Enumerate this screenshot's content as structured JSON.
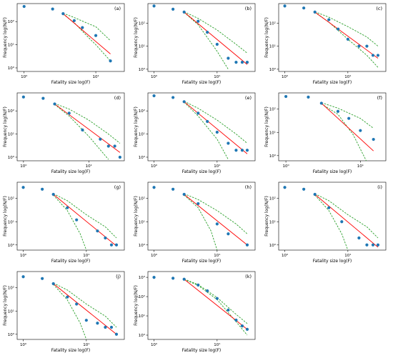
{
  "figure": {
    "colors": {
      "points": "#1f77b4",
      "fit_line": "#ff0000",
      "confidence_band": "#2ca02c",
      "axes": "#000000"
    }
  },
  "chart_data": [
    {
      "type": "scatter",
      "label": "(a)",
      "xlabel": "Fatality size log(F)",
      "ylabel": "Frequency log(N/F)",
      "x_scale": "log",
      "y_scale": "log",
      "xlim": [
        0.8,
        25
      ],
      "ylim": [
        0.7,
        600
      ],
      "x_ticks": [
        1,
        10
      ],
      "x_tick_labels": [
        "10⁰",
        "10¹"
      ],
      "y_ticks": [
        1,
        10,
        100
      ],
      "y_tick_labels": [
        "10⁰",
        "10¹",
        "10²"
      ],
      "points": {
        "x": [
          1,
          2.5,
          3.5,
          5,
          6.5,
          10,
          16
        ],
        "y": [
          450,
          350,
          220,
          110,
          55,
          25,
          2
        ]
      },
      "fit": {
        "x": [
          3.5,
          16
        ],
        "y": [
          220,
          4
        ]
      },
      "band_upper": {
        "x": [
          3.5,
          5,
          7,
          10,
          16
        ],
        "y": [
          230,
          150,
          95,
          60,
          15
        ]
      },
      "band_lower": {
        "x": [
          3.5,
          5,
          7,
          10,
          16
        ],
        "y": [
          210,
          90,
          30,
          10,
          2
        ]
      }
    },
    {
      "type": "scatter",
      "label": "(b)",
      "xlabel": "Fatality size log(F)",
      "ylabel": "Frequency log(N/F)",
      "x_scale": "log",
      "y_scale": "log",
      "xlim": [
        0.8,
        40
      ],
      "ylim": [
        0.8,
        700
      ],
      "x_ticks": [
        1,
        10
      ],
      "x_tick_labels": [
        "10⁰",
        "10¹"
      ],
      "y_ticks": [
        1,
        10,
        100
      ],
      "y_tick_labels": [
        "10⁰",
        "10¹",
        "10²"
      ],
      "points": {
        "x": [
          1,
          2,
          3,
          5,
          7,
          10,
          15,
          20,
          25,
          30
        ],
        "y": [
          550,
          400,
          300,
          120,
          40,
          12,
          3,
          2,
          2,
          2
        ]
      },
      "fit": {
        "x": [
          3,
          30
        ],
        "y": [
          300,
          1.6
        ]
      },
      "band_upper": {
        "x": [
          3,
          5,
          10,
          20,
          30
        ],
        "y": [
          310,
          160,
          50,
          12,
          5
        ]
      },
      "band_lower": {
        "x": [
          3,
          5,
          10,
          15
        ],
        "y": [
          290,
          85,
          6,
          1
        ]
      }
    },
    {
      "type": "scatter",
      "label": "(c)",
      "xlabel": "Fatality size log(F)",
      "ylabel": "Frequency log(N/F)",
      "x_scale": "log",
      "y_scale": "log",
      "xlim": [
        0.8,
        40
      ],
      "ylim": [
        0.8,
        700
      ],
      "x_ticks": [
        1,
        10
      ],
      "x_tick_labels": [
        "10⁰",
        "10¹"
      ],
      "y_ticks": [
        1,
        10,
        100
      ],
      "y_tick_labels": [
        "10⁰",
        "10¹",
        "10²"
      ],
      "points": {
        "x": [
          1,
          2,
          3,
          5,
          7,
          10,
          15,
          20,
          25,
          30
        ],
        "y": [
          550,
          450,
          300,
          140,
          55,
          20,
          10,
          10,
          4,
          4
        ]
      },
      "fit": {
        "x": [
          3,
          30
        ],
        "y": [
          300,
          3
        ]
      },
      "band_upper": {
        "x": [
          3,
          5,
          10,
          20,
          30
        ],
        "y": [
          310,
          180,
          70,
          25,
          10
        ]
      },
      "band_lower": {
        "x": [
          3,
          5,
          10,
          20,
          30
        ],
        "y": [
          290,
          110,
          20,
          4,
          1.2
        ]
      }
    },
    {
      "type": "scatter",
      "label": "(d)",
      "xlabel": "Fatality size log(F)",
      "ylabel": "Frequency log(N/F)",
      "x_scale": "log",
      "y_scale": "log",
      "xlim": [
        0.8,
        35
      ],
      "ylim": [
        0.7,
        600
      ],
      "x_ticks": [
        1,
        10
      ],
      "x_tick_labels": [
        "10⁰",
        "10¹"
      ],
      "y_ticks": [
        1,
        10,
        100
      ],
      "y_tick_labels": [
        "10⁰",
        "10¹",
        "10²"
      ],
      "points": {
        "x": [
          1,
          2,
          3,
          5,
          8,
          15,
          20,
          25,
          30
        ],
        "y": [
          400,
          350,
          200,
          80,
          15,
          6,
          3,
          3,
          1
        ]
      },
      "fit": {
        "x": [
          3,
          30
        ],
        "y": [
          200,
          1.6
        ]
      },
      "band_upper": {
        "x": [
          3,
          5,
          10,
          20,
          30
        ],
        "y": [
          210,
          120,
          40,
          10,
          4
        ]
      },
      "band_lower": {
        "x": [
          3,
          5,
          10,
          20
        ],
        "y": [
          190,
          60,
          8,
          0.8
        ]
      }
    },
    {
      "type": "scatter",
      "label": "(e)",
      "xlabel": "Fatality size log(F)",
      "ylabel": "Frequency log(N/F)",
      "x_scale": "log",
      "y_scale": "log",
      "xlim": [
        0.8,
        40
      ],
      "ylim": [
        0.7,
        600
      ],
      "x_ticks": [
        1,
        10
      ],
      "x_tick_labels": [
        "10⁰",
        "10¹"
      ],
      "y_ticks": [
        1,
        10,
        100
      ],
      "y_tick_labels": [
        "10⁰",
        "10¹",
        "10²"
      ],
      "points": {
        "x": [
          1,
          2,
          3,
          5,
          7,
          10,
          15,
          20,
          25,
          30
        ],
        "y": [
          450,
          380,
          250,
          80,
          35,
          12,
          4,
          2,
          2,
          2
        ]
      },
      "fit": {
        "x": [
          3,
          30
        ],
        "y": [
          250,
          1.4
        ]
      },
      "band_upper": {
        "x": [
          3,
          5,
          10,
          20,
          30
        ],
        "y": [
          260,
          130,
          40,
          10,
          4
        ]
      },
      "band_lower": {
        "x": [
          3,
          5,
          10,
          15
        ],
        "y": [
          240,
          60,
          6,
          0.8
        ]
      }
    },
    {
      "type": "scatter",
      "label": "(f)",
      "xlabel": "Fatality size log(F)",
      "ylabel": "Frequency log(N/F)",
      "x_scale": "log",
      "y_scale": "log",
      "xlim": [
        0.8,
        22
      ],
      "ylim": [
        0.6,
        500
      ],
      "x_ticks": [
        1,
        10
      ],
      "x_tick_labels": [
        "10⁰",
        "10¹"
      ],
      "y_ticks": [
        1,
        10,
        100
      ],
      "y_tick_labels": [
        "10⁰",
        "10¹",
        "10²"
      ],
      "points": {
        "x": [
          1,
          2,
          3,
          5,
          7,
          10,
          15
        ],
        "y": [
          350,
          330,
          180,
          80,
          40,
          12,
          5
        ]
      },
      "fit": {
        "x": [
          3,
          15
        ],
        "y": [
          180,
          1.6
        ]
      },
      "band_upper": {
        "x": [
          3,
          5,
          10,
          15
        ],
        "y": [
          190,
          110,
          40,
          15
        ]
      },
      "band_lower": {
        "x": [
          3,
          5,
          8,
          12
        ],
        "y": [
          170,
          60,
          8,
          0.6
        ]
      }
    },
    {
      "type": "scatter",
      "label": "(g)",
      "xlabel": "Fatality size log(F)",
      "ylabel": "Frequency log(N/F)",
      "x_scale": "log",
      "y_scale": "log",
      "xlim": [
        0.8,
        40
      ],
      "ylim": [
        0.6,
        500
      ],
      "x_ticks": [
        1,
        10
      ],
      "x_tick_labels": [
        "10⁰",
        "10¹"
      ],
      "y_ticks": [
        1,
        10,
        100
      ],
      "y_tick_labels": [
        "10⁰",
        "10¹",
        "10²"
      ],
      "points": {
        "x": [
          1,
          2,
          3,
          5,
          7,
          15,
          20,
          25,
          30
        ],
        "y": [
          300,
          250,
          150,
          40,
          12,
          4,
          2,
          1,
          1
        ]
      },
      "fit": {
        "x": [
          3,
          30
        ],
        "y": [
          150,
          0.9
        ]
      },
      "band_upper": {
        "x": [
          3,
          5,
          10,
          20,
          30
        ],
        "y": [
          160,
          80,
          20,
          6,
          2
        ]
      },
      "band_lower": {
        "x": [
          3,
          5,
          8,
          10
        ],
        "y": [
          140,
          30,
          3,
          0.6
        ]
      }
    },
    {
      "type": "scatter",
      "label": "(h)",
      "xlabel": "Fatality size log(F)",
      "ylabel": "Frequency log(N/F)",
      "x_scale": "log",
      "y_scale": "log",
      "xlim": [
        0.8,
        40
      ],
      "ylim": [
        0.6,
        500
      ],
      "x_ticks": [
        1,
        10
      ],
      "x_tick_labels": [
        "10⁰",
        "10¹"
      ],
      "y_ticks": [
        1,
        10,
        100
      ],
      "y_tick_labels": [
        "10⁰",
        "10¹",
        "10²"
      ],
      "points": {
        "x": [
          1,
          2,
          3,
          5,
          10,
          15,
          30
        ],
        "y": [
          300,
          250,
          150,
          60,
          8,
          3,
          1
        ]
      },
      "fit": {
        "x": [
          3,
          30
        ],
        "y": [
          150,
          1
        ]
      },
      "band_upper": {
        "x": [
          3,
          5,
          10,
          20,
          30
        ],
        "y": [
          160,
          90,
          30,
          8,
          3
        ]
      },
      "band_lower": {
        "x": [
          3,
          5,
          8,
          10
        ],
        "y": [
          140,
          40,
          4,
          0.6
        ]
      }
    },
    {
      "type": "scatter",
      "label": "(i)",
      "xlabel": "Fatality size log(F)",
      "ylabel": "Frequency log(N/F)",
      "x_scale": "log",
      "y_scale": "log",
      "xlim": [
        0.8,
        40
      ],
      "ylim": [
        0.6,
        500
      ],
      "x_ticks": [
        1,
        10
      ],
      "x_tick_labels": [
        "10⁰",
        "10¹"
      ],
      "y_ticks": [
        1,
        10,
        100
      ],
      "y_tick_labels": [
        "10⁰",
        "10¹",
        "10²"
      ],
      "points": {
        "x": [
          1,
          2,
          3,
          5,
          8,
          15,
          20,
          25,
          30
        ],
        "y": [
          300,
          250,
          150,
          40,
          10,
          2,
          1,
          1,
          1
        ]
      },
      "fit": {
        "x": [
          3,
          30
        ],
        "y": [
          150,
          0.8
        ]
      },
      "band_upper": {
        "x": [
          3,
          5,
          10,
          20,
          30
        ],
        "y": [
          160,
          80,
          20,
          6,
          2
        ]
      },
      "band_lower": {
        "x": [
          3,
          5,
          8,
          10
        ],
        "y": [
          140,
          30,
          3,
          0.6
        ]
      }
    },
    {
      "type": "scatter",
      "label": "(j)",
      "xlabel": "Fatality size log(F)",
      "ylabel": "Frequency log(N/F)",
      "x_scale": "log",
      "y_scale": "log",
      "xlim": [
        0.8,
        40
      ],
      "ylim": [
        0.6,
        500
      ],
      "x_ticks": [
        1,
        10
      ],
      "x_tick_labels": [
        "10⁰",
        "10¹"
      ],
      "y_ticks": [
        1,
        10,
        100
      ],
      "y_tick_labels": [
        "10⁰",
        "10¹",
        "10²"
      ],
      "points": {
        "x": [
          1,
          2,
          3,
          5,
          7,
          10,
          15,
          20,
          25,
          30
        ],
        "y": [
          300,
          250,
          150,
          40,
          20,
          4,
          3,
          2,
          2,
          1
        ]
      },
      "fit": {
        "x": [
          3,
          30
        ],
        "y": [
          150,
          1
        ]
      },
      "band_upper": {
        "x": [
          3,
          5,
          10,
          20,
          30
        ],
        "y": [
          160,
          80,
          20,
          6,
          2
        ]
      },
      "band_lower": {
        "x": [
          3,
          5,
          8,
          10
        ],
        "y": [
          140,
          30,
          3,
          0.6
        ]
      }
    },
    {
      "type": "scatter",
      "label": "(k)",
      "xlabel": "Fatality size log(F)",
      "ylabel": "Frequency log(N/F)",
      "x_scale": "log",
      "y_scale": "log",
      "xlim": [
        0.8,
        40
      ],
      "ylim": [
        0.6,
        2000
      ],
      "x_ticks": [
        1,
        10
      ],
      "x_tick_labels": [
        "10⁰",
        "10¹"
      ],
      "y_ticks": [
        1,
        10,
        100,
        1000
      ],
      "y_tick_labels": [
        "10⁰",
        "10¹",
        "10²",
        "10³"
      ],
      "points": {
        "x": [
          1,
          2,
          3,
          5,
          7,
          10,
          15,
          20,
          25,
          30
        ],
        "y": [
          1000,
          900,
          800,
          400,
          200,
          80,
          20,
          6,
          3,
          2
        ]
      },
      "fit": {
        "x": [
          3,
          30
        ],
        "y": [
          800,
          2
        ]
      },
      "band_upper": {
        "x": [
          3,
          5,
          10,
          20,
          30
        ],
        "y": [
          820,
          420,
          90,
          12,
          4
        ]
      },
      "band_lower": {
        "x": [
          3,
          5,
          10,
          20,
          30
        ],
        "y": [
          780,
          380,
          70,
          5,
          1
        ]
      }
    }
  ]
}
